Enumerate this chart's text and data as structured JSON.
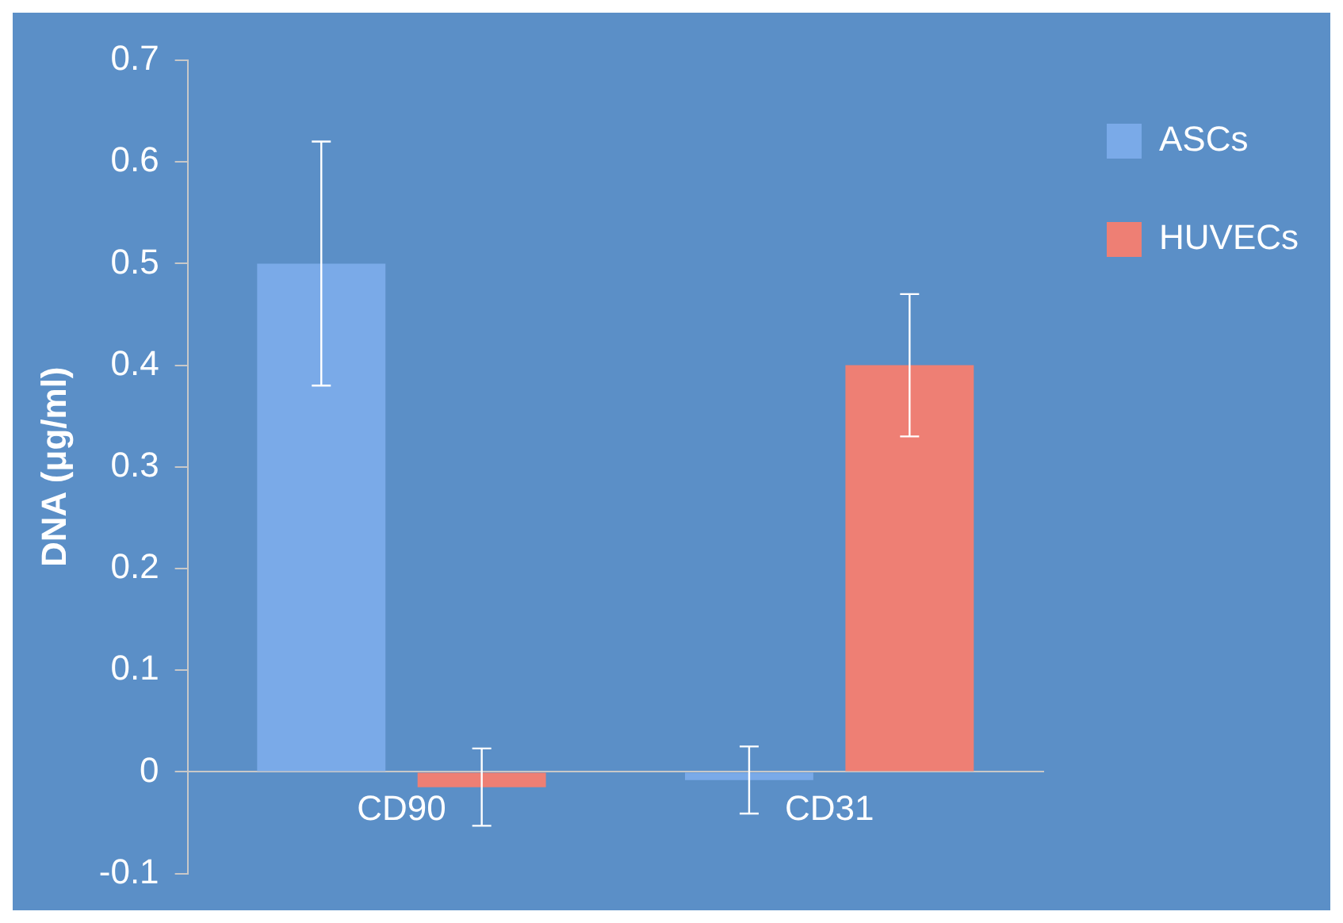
{
  "chart_data": {
    "type": "bar",
    "ylabel": "DNA (μg/ml)",
    "categories": [
      "CD90",
      "CD31"
    ],
    "series": [
      {
        "name": "ASCs",
        "color": "#7aaae8",
        "values": [
          0.5,
          -0.008
        ],
        "errors": [
          0.12,
          0.033
        ]
      },
      {
        "name": "HUVECs",
        "color": "#ee7f74",
        "values": [
          -0.015,
          0.4
        ],
        "errors": [
          0.038,
          0.07
        ]
      }
    ],
    "ylim": [
      -0.1,
      0.7
    ],
    "yticks": [
      -0.1,
      0,
      0.1,
      0.2,
      0.3,
      0.4,
      0.5,
      0.6,
      0.7
    ],
    "grid": false,
    "legend": "top right"
  }
}
